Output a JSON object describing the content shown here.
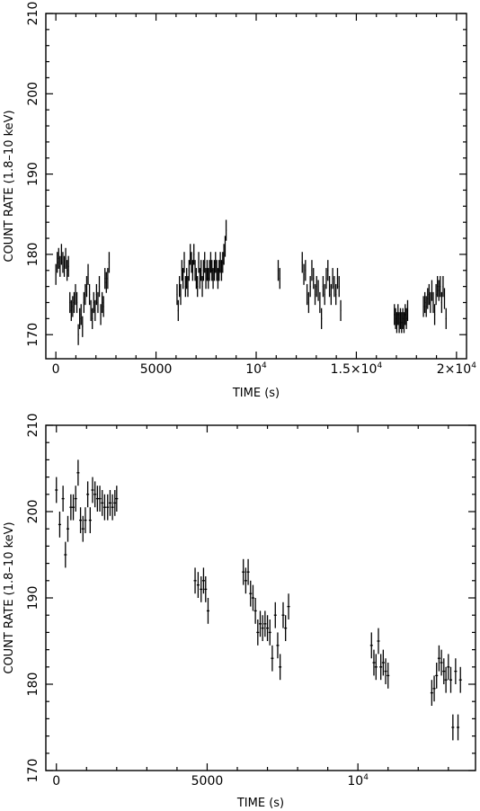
{
  "chart_data": [
    {
      "type": "scatter",
      "title": "",
      "xlabel": "TIME (s)",
      "ylabel": "COUNT RATE (1.8–10 keV)",
      "xlim": [
        -500,
        20500
      ],
      "ylim": [
        167,
        210
      ],
      "xticks": [
        {
          "value": 0,
          "label": "0"
        },
        {
          "value": 5000,
          "label": "5000"
        },
        {
          "value": 10000,
          "label": "10",
          "sup": "4"
        },
        {
          "value": 15000,
          "label": "1.5×10",
          "sup": "4"
        },
        {
          "value": 20000,
          "label": "2×10",
          "sup": "4"
        }
      ],
      "yticks": [
        {
          "value": 170,
          "label": "170"
        },
        {
          "value": 180,
          "label": "180"
        },
        {
          "value": 190,
          "label": "190"
        },
        {
          "value": 200,
          "label": "200"
        },
        {
          "value": 210,
          "label": "210"
        }
      ],
      "bin_halfwidth": 25,
      "grid": false,
      "legend": "none",
      "points": [
        [
          0,
          177.5,
          1.3
        ],
        [
          70,
          179,
          1.3
        ],
        [
          140,
          179.5,
          1.3
        ],
        [
          210,
          178.5,
          1.3
        ],
        [
          280,
          180,
          1.3
        ],
        [
          350,
          179,
          1.3
        ],
        [
          420,
          178.5,
          1.3
        ],
        [
          490,
          179.5,
          1.3
        ],
        [
          560,
          178,
          1.3
        ],
        [
          630,
          178.5,
          1.3
        ],
        [
          700,
          174,
          1.3
        ],
        [
          770,
          173,
          1.3
        ],
        [
          840,
          173.5,
          1.3
        ],
        [
          910,
          174,
          1.3
        ],
        [
          980,
          175,
          1.3
        ],
        [
          1050,
          174,
          1.3
        ],
        [
          1120,
          170,
          1.3
        ],
        [
          1190,
          172,
          1.3
        ],
        [
          1260,
          172.5,
          1.3
        ],
        [
          1330,
          171,
          1.3
        ],
        [
          1400,
          174,
          1.3
        ],
        [
          1470,
          175,
          1.3
        ],
        [
          1540,
          176,
          1.3
        ],
        [
          1610,
          177.5,
          1.3
        ],
        [
          1680,
          175,
          1.3
        ],
        [
          1750,
          173,
          1.3
        ],
        [
          1820,
          172,
          1.3
        ],
        [
          1890,
          174,
          1.3
        ],
        [
          1960,
          173,
          1.3
        ],
        [
          2030,
          175,
          1.3
        ],
        [
          2100,
          174,
          1.3
        ],
        [
          2170,
          176,
          1.3
        ],
        [
          2240,
          172.5,
          1.3
        ],
        [
          2310,
          174,
          1.3
        ],
        [
          2380,
          173.5,
          1.3
        ],
        [
          2450,
          177,
          1.3
        ],
        [
          2520,
          176.5,
          1.3
        ],
        [
          2590,
          177,
          1.3
        ],
        [
          2660,
          179,
          1.3
        ],
        [
          6050,
          175,
          1.3
        ],
        [
          6110,
          173,
          1.3
        ],
        [
          6170,
          176,
          1.3
        ],
        [
          6230,
          175,
          1.3
        ],
        [
          6290,
          178,
          1.3
        ],
        [
          6350,
          177,
          1.3
        ],
        [
          6410,
          179,
          1.3
        ],
        [
          6470,
          176,
          1.3
        ],
        [
          6530,
          177,
          1.3
        ],
        [
          6590,
          176,
          1.3
        ],
        [
          6650,
          178,
          1.3
        ],
        [
          6710,
          180,
          1.3
        ],
        [
          6770,
          179,
          1.3
        ],
        [
          6830,
          178,
          1.3
        ],
        [
          6890,
          180,
          1.3
        ],
        [
          6950,
          178,
          1.3
        ],
        [
          7010,
          177,
          1.3
        ],
        [
          7070,
          176,
          1.3
        ],
        [
          7130,
          179,
          1.3
        ],
        [
          7190,
          177,
          1.3
        ],
        [
          7250,
          178,
          1.3
        ],
        [
          7310,
          176,
          1.3
        ],
        [
          7370,
          178,
          1.3
        ],
        [
          7430,
          179,
          1.3
        ],
        [
          7490,
          177,
          1.3
        ],
        [
          7550,
          178,
          1.3
        ],
        [
          7610,
          177,
          1.3
        ],
        [
          7670,
          178,
          1.3
        ],
        [
          7730,
          179,
          1.3
        ],
        [
          7790,
          178,
          1.3
        ],
        [
          7850,
          177,
          1.3
        ],
        [
          7910,
          178,
          1.3
        ],
        [
          7970,
          179,
          1.3
        ],
        [
          8030,
          178,
          1.3
        ],
        [
          8090,
          177,
          1.3
        ],
        [
          8150,
          178,
          1.3
        ],
        [
          8210,
          179,
          1.3
        ],
        [
          8270,
          178,
          1.3
        ],
        [
          8330,
          179,
          1.3
        ],
        [
          8390,
          180,
          1.3
        ],
        [
          8450,
          181,
          1.3
        ],
        [
          8500,
          183,
          1.3
        ],
        [
          11100,
          178,
          1.3
        ],
        [
          11180,
          177,
          1.3
        ],
        [
          12300,
          179,
          1.3
        ],
        [
          12380,
          177.5,
          1.3
        ],
        [
          12460,
          178,
          1.3
        ],
        [
          12540,
          175,
          1.3
        ],
        [
          12620,
          174,
          1.3
        ],
        [
          12700,
          176,
          1.3
        ],
        [
          12780,
          178,
          1.3
        ],
        [
          12860,
          177,
          1.3
        ],
        [
          12940,
          175,
          1.3
        ],
        [
          13020,
          176,
          1.3
        ],
        [
          13100,
          175.5,
          1.3
        ],
        [
          13180,
          174,
          1.3
        ],
        [
          13260,
          172,
          1.3
        ],
        [
          13340,
          176,
          1.3
        ],
        [
          13420,
          175,
          1.3
        ],
        [
          13500,
          177,
          1.3
        ],
        [
          13580,
          178,
          1.3
        ],
        [
          13660,
          176,
          1.3
        ],
        [
          13740,
          175,
          1.3
        ],
        [
          13820,
          177,
          1.3
        ],
        [
          13900,
          176,
          1.3
        ],
        [
          13980,
          175,
          1.3
        ],
        [
          14060,
          177,
          1.3
        ],
        [
          14140,
          176,
          1.3
        ],
        [
          14220,
          173,
          1.3
        ],
        [
          16900,
          172.5,
          1.3
        ],
        [
          16960,
          172,
          1.3
        ],
        [
          17020,
          171.5,
          1.3
        ],
        [
          17080,
          172.5,
          1.3
        ],
        [
          17140,
          171.5,
          1.3
        ],
        [
          17200,
          172,
          1.3
        ],
        [
          17260,
          171.5,
          1.3
        ],
        [
          17320,
          172,
          1.3
        ],
        [
          17380,
          171.5,
          1.3
        ],
        [
          17440,
          172.5,
          1.3
        ],
        [
          17500,
          172,
          1.3
        ],
        [
          17560,
          173,
          1.3
        ],
        [
          18350,
          173.5,
          1.3
        ],
        [
          18420,
          174,
          1.3
        ],
        [
          18490,
          173.5,
          1.3
        ],
        [
          18560,
          174.5,
          1.3
        ],
        [
          18630,
          175,
          1.3
        ],
        [
          18700,
          174,
          1.3
        ],
        [
          18770,
          175.5,
          1.3
        ],
        [
          18840,
          174,
          1.3
        ],
        [
          18910,
          172.5,
          1.3
        ],
        [
          18980,
          175,
          1.3
        ],
        [
          19050,
          176,
          1.3
        ],
        [
          19120,
          175.5,
          1.3
        ],
        [
          19190,
          176,
          1.3
        ],
        [
          19260,
          174,
          1.3
        ],
        [
          19330,
          176,
          1.3
        ],
        [
          19400,
          174.5,
          1.3
        ],
        [
          19480,
          172,
          1.3
        ]
      ]
    },
    {
      "type": "scatter",
      "title": "",
      "xlabel": "TIME (s)",
      "ylabel": "COUNT RATE (1.8–10 keV)",
      "xlim": [
        -350,
        13900
      ],
      "ylim": [
        170,
        210
      ],
      "xticks": [
        {
          "value": 0,
          "label": "0"
        },
        {
          "value": 5000,
          "label": "5000"
        },
        {
          "value": 10000,
          "label": "10",
          "sup": "4"
        }
      ],
      "yticks": [
        {
          "value": 170,
          "label": "170"
        },
        {
          "value": 180,
          "label": "180"
        },
        {
          "value": 190,
          "label": "190"
        },
        {
          "value": 200,
          "label": "200"
        },
        {
          "value": 210,
          "label": "210"
        }
      ],
      "bin_halfwidth": 45,
      "grid": false,
      "legend": "none",
      "points": [
        [
          0,
          202.5,
          1.5
        ],
        [
          110,
          198.5,
          1.5
        ],
        [
          220,
          201.5,
          1.5
        ],
        [
          300,
          195,
          1.5
        ],
        [
          380,
          198,
          1.5
        ],
        [
          480,
          200.5,
          1.5
        ],
        [
          560,
          200.5,
          1.5
        ],
        [
          640,
          201.5,
          1.5
        ],
        [
          720,
          204.5,
          1.5
        ],
        [
          800,
          199,
          1.5
        ],
        [
          880,
          198,
          1.5
        ],
        [
          960,
          199,
          1.5
        ],
        [
          1040,
          202,
          1.5
        ],
        [
          1120,
          199,
          1.5
        ],
        [
          1200,
          202.5,
          1.5
        ],
        [
          1280,
          202,
          1.5
        ],
        [
          1360,
          201.5,
          1.5
        ],
        [
          1440,
          201.5,
          1.5
        ],
        [
          1520,
          201,
          1.5
        ],
        [
          1600,
          200.5,
          1.5
        ],
        [
          1700,
          200.5,
          1.5
        ],
        [
          1780,
          201,
          1.5
        ],
        [
          1860,
          200.5,
          1.5
        ],
        [
          1940,
          201,
          1.5
        ],
        [
          2000,
          201.5,
          1.5
        ],
        [
          4600,
          192,
          1.5
        ],
        [
          4700,
          191.5,
          1.5
        ],
        [
          4800,
          191,
          1.5
        ],
        [
          4880,
          192,
          1.5
        ],
        [
          4950,
          191,
          1.5
        ],
        [
          5030,
          188.5,
          1.5
        ],
        [
          6200,
          193,
          1.5
        ],
        [
          6280,
          192,
          1.5
        ],
        [
          6360,
          193,
          1.5
        ],
        [
          6440,
          190.5,
          1.5
        ],
        [
          6520,
          190,
          1.5
        ],
        [
          6600,
          188.5,
          1.5
        ],
        [
          6680,
          186,
          1.5
        ],
        [
          6760,
          187,
          1.5
        ],
        [
          6840,
          186.5,
          1.5
        ],
        [
          6920,
          187,
          1.5
        ],
        [
          7000,
          186.5,
          1.5
        ],
        [
          7080,
          186,
          1.5
        ],
        [
          7160,
          183,
          1.5
        ],
        [
          7260,
          188,
          1.5
        ],
        [
          7340,
          184.5,
          1.5
        ],
        [
          7420,
          182,
          1.5
        ],
        [
          7520,
          188,
          1.5
        ],
        [
          7600,
          186.5,
          1.5
        ],
        [
          7700,
          189,
          1.5
        ],
        [
          10450,
          184.5,
          1.5
        ],
        [
          10530,
          182.5,
          1.5
        ],
        [
          10600,
          182,
          1.5
        ],
        [
          10680,
          185,
          1.5
        ],
        [
          10760,
          182,
          1.5
        ],
        [
          10840,
          182.5,
          1.5
        ],
        [
          10920,
          181.5,
          1.5
        ],
        [
          11000,
          181,
          1.5
        ],
        [
          12450,
          179,
          1.5
        ],
        [
          12530,
          179.5,
          1.5
        ],
        [
          12610,
          181,
          1.5
        ],
        [
          12690,
          183,
          1.5
        ],
        [
          12770,
          182.5,
          1.5
        ],
        [
          12850,
          181.5,
          1.5
        ],
        [
          12920,
          180.5,
          1.5
        ],
        [
          13000,
          182,
          1.5
        ],
        [
          13080,
          180.5,
          1.5
        ],
        [
          13150,
          175,
          1.5
        ],
        [
          13240,
          181.5,
          1.5
        ],
        [
          13320,
          175,
          1.5
        ],
        [
          13400,
          180.5,
          1.5
        ]
      ]
    }
  ]
}
